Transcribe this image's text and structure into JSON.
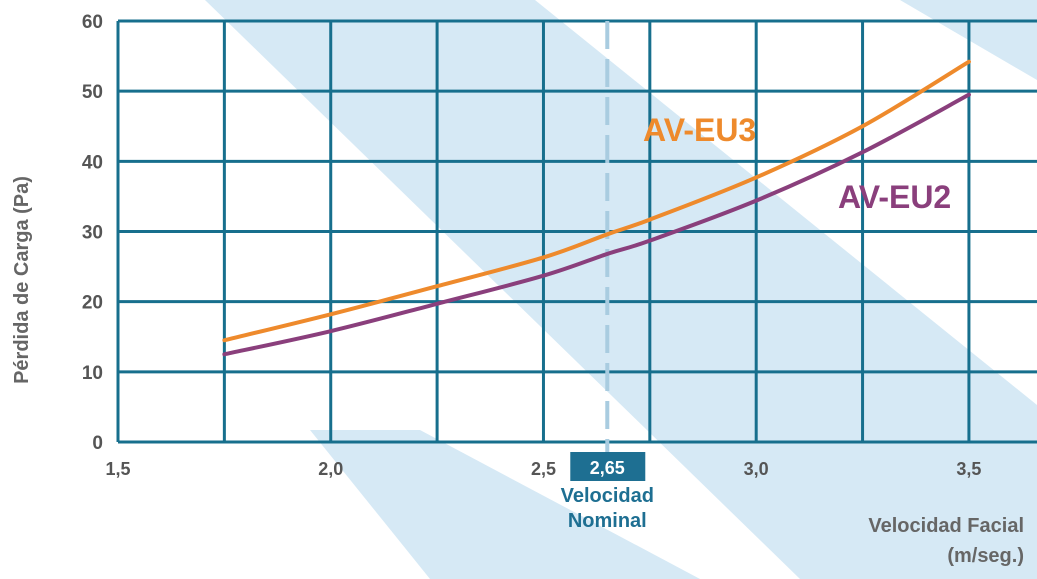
{
  "chart_data": {
    "type": "line",
    "title": "",
    "xlabel": "Velocidad Facial (m/seg.)",
    "xlabel_lines": [
      "Velocidad Facial",
      "(m/seg.)"
    ],
    "ylabel": "Pérdida de Carga (Pa)",
    "xlim": [
      1.5,
      3.66
    ],
    "ylim": [
      0,
      60
    ],
    "x_ticks": [
      1.5,
      2.0,
      2.5,
      3.0,
      3.5
    ],
    "x_tick_labels": [
      "1,5",
      "2,0",
      "2,5",
      "3,0",
      "3,5"
    ],
    "x_gridlines": [
      1.5,
      1.75,
      2.0,
      2.25,
      2.5,
      2.75,
      3.0,
      3.25,
      3.5
    ],
    "y_ticks": [
      0,
      10,
      20,
      30,
      40,
      50,
      60
    ],
    "y_tick_labels": [
      "0",
      "10",
      "20",
      "30",
      "40",
      "50",
      "60"
    ],
    "grid": true,
    "series": [
      {
        "name": "AV-EU3",
        "color": "#ee8a2c",
        "x": [
          1.75,
          2.0,
          2.25,
          2.5,
          2.65,
          2.75,
          3.0,
          3.25,
          3.5
        ],
        "y": [
          14.5,
          18.2,
          22.2,
          26.3,
          29.6,
          31.7,
          37.7,
          45.0,
          54.2
        ]
      },
      {
        "name": "AV-EU2",
        "color": "#8a3f7c",
        "x": [
          1.75,
          2.0,
          2.25,
          2.5,
          2.65,
          2.75,
          3.0,
          3.25,
          3.5
        ],
        "y": [
          12.5,
          15.8,
          19.7,
          23.7,
          26.8,
          28.7,
          34.4,
          41.3,
          49.5
        ]
      }
    ],
    "annotations": [
      {
        "type": "vertical-dashed-line",
        "x": 2.65,
        "color": "#a9cce0",
        "label_box": "2,65",
        "label_box_color": "#1e6f92",
        "label_lines": [
          "Velocidad",
          "Nominal"
        ]
      }
    ]
  },
  "colors": {
    "grid": "#176f8d",
    "background_band": "#d6e9f5",
    "tick_text": "#555555"
  }
}
